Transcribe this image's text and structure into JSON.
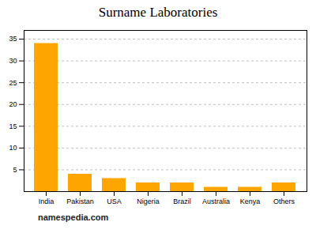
{
  "chart_data": {
    "type": "bar",
    "title": "Surname Laboratories",
    "categories": [
      "India",
      "Pakistan",
      "USA",
      "Nigeria",
      "Brazil",
      "Australia",
      "Kenya",
      "Others"
    ],
    "values": [
      34,
      4,
      3,
      2,
      2,
      1,
      1,
      2
    ],
    "color": "#FFA500",
    "ylim": [
      0,
      37
    ],
    "yticks": [
      5,
      10,
      15,
      20,
      25,
      30,
      35
    ],
    "grid": true,
    "annotations": [
      "namespedia.com"
    ]
  }
}
